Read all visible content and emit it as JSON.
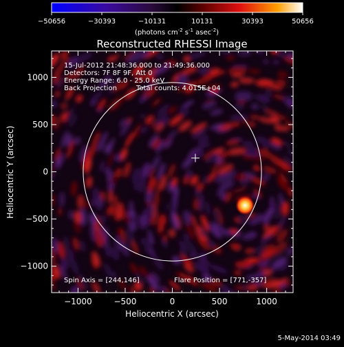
{
  "chart_data": {
    "type": "heatmap",
    "title": "Reconstructed RHESSI Image",
    "xlabel": "Heliocentric X (arcsec)",
    "ylabel": "Heliocentric Y (arcsec)",
    "xlim": [
      -1280,
      1280
    ],
    "ylim": [
      -1280,
      1280
    ],
    "xticks": [
      -1000,
      -500,
      0,
      500,
      1000
    ],
    "yticks": [
      -1000,
      -500,
      0,
      500,
      1000
    ],
    "grid": false,
    "colorbar": {
      "ticks": [
        -50656,
        -30393,
        -10131,
        10131,
        30393,
        50656
      ],
      "range": [
        -50656,
        50656
      ],
      "units_prefix": "(photons cm",
      "units_sup1": "-2",
      "units_mid": " s",
      "units_sup2": "-1",
      "units_mid2": " asec",
      "units_sup3": "-2",
      "units_suffix": ")"
    },
    "annotations": {
      "time_range": "15-Jul-2012 21:48:36.000 to 21:49:36.000",
      "detectors": "Detectors: 7F 8F 9F, Att 0",
      "energy": "Energy Range: 6.0 - 25.0 keV",
      "method": "Back Projection",
      "total_counts": "Total counts: 4.015E+04",
      "spin_axis": "Spin Axis = [244,146]",
      "flare_position": "Flare Position = [771,-357]"
    },
    "solar_limb_radius_arcsec": 945,
    "spin_axis_point": [
      244,
      146
    ],
    "flare_source": {
      "x": 771,
      "y": -357,
      "peak": 50656
    }
  },
  "footer": {
    "date": "5-May-2014 03:49"
  }
}
